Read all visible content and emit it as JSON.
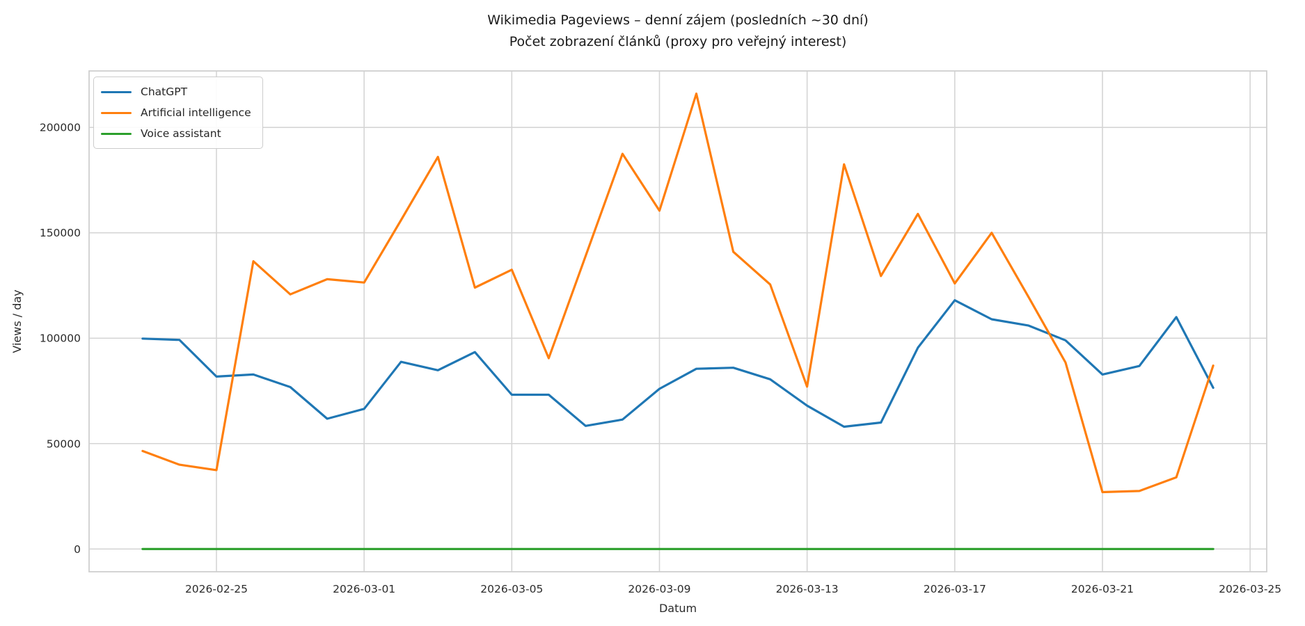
{
  "figure": {
    "title_line1": "Wikimedia Pageviews – denní zájem (posledních ~30 dní)",
    "title_line2": "Počet zobrazení článků (proxy pro veřejný interest)"
  },
  "chart_data": {
    "type": "line",
    "title": "Wikimedia Pageviews – denní zájem (posledních ~30 dní)",
    "subtitle": "Počet zobrazení článků (proxy pro veřejný interest)",
    "xlabel": "Datum",
    "ylabel": "Views / day",
    "grid": true,
    "legend_position": "upper left",
    "background": "#ffffff",
    "grid_color": "#d5d5d5",
    "spine_color": "#cfcfcf",
    "tick_label_color": "#2b2b2b",
    "x": [
      "2026-02-23",
      "2026-02-24",
      "2026-02-25",
      "2026-02-26",
      "2026-02-27",
      "2026-02-28",
      "2026-03-01",
      "2026-03-02",
      "2026-03-03",
      "2026-03-04",
      "2026-03-05",
      "2026-03-06",
      "2026-03-07",
      "2026-03-08",
      "2026-03-09",
      "2026-03-10",
      "2026-03-11",
      "2026-03-12",
      "2026-03-13",
      "2026-03-14",
      "2026-03-15",
      "2026-03-16",
      "2026-03-17",
      "2026-03-18",
      "2026-03-19",
      "2026-03-20",
      "2026-03-21",
      "2026-03-22",
      "2026-03-23",
      "2026-03-24"
    ],
    "series": [
      {
        "name": "ChatGPT",
        "color": "#1f77b4",
        "values": [
          99800,
          99200,
          81800,
          82800,
          76800,
          61800,
          66500,
          88800,
          84800,
          93400,
          73200,
          73200,
          58400,
          61400,
          76000,
          85500,
          86000,
          80500,
          68000,
          58000,
          60000,
          95500,
          118000,
          109000,
          106000,
          99000,
          82800,
          86800,
          110000,
          76500
        ]
      },
      {
        "name": "Artificial intelligence",
        "color": "#ff7f0e",
        "values": [
          46500,
          40000,
          37400,
          136500,
          120800,
          128000,
          126400,
          156000,
          186000,
          124000,
          132500,
          90500,
          139000,
          187500,
          160500,
          216000,
          141000,
          125500,
          77000,
          182500,
          129500,
          159000,
          126000,
          150000,
          119500,
          88500,
          27000,
          27500,
          34000,
          87000
        ]
      },
      {
        "name": "Voice assistant",
        "color": "#2ca02c",
        "values": [
          0,
          0,
          0,
          0,
          0,
          0,
          0,
          0,
          0,
          0,
          0,
          0,
          0,
          0,
          0,
          0,
          0,
          0,
          0,
          0,
          0,
          0,
          0,
          0,
          0,
          0,
          0,
          0,
          0,
          0
        ]
      }
    ],
    "x_ticks": [
      "2026-02-25",
      "2026-03-01",
      "2026-03-05",
      "2026-03-09",
      "2026-03-13",
      "2026-03-17",
      "2026-03-21",
      "2026-03-25"
    ],
    "y_ticks": [
      0,
      50000,
      100000,
      150000,
      200000
    ],
    "ylim": [
      -10800,
      226800
    ],
    "x_margin_days": 1.45
  }
}
